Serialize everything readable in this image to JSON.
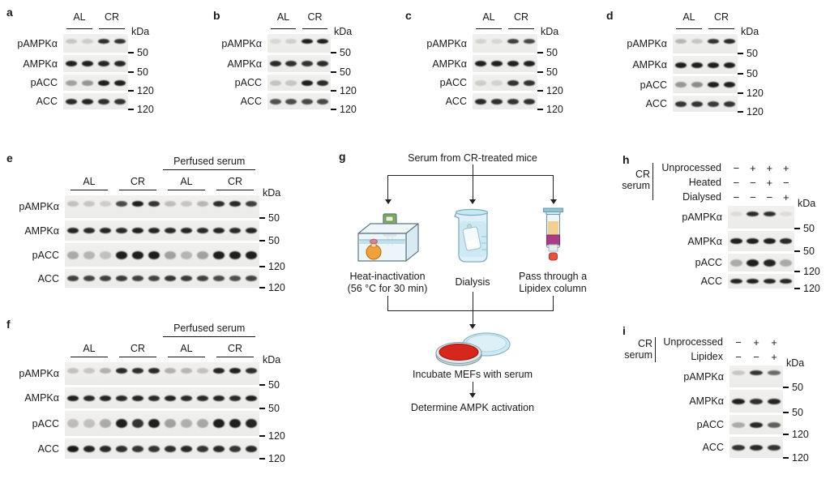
{
  "figure": {
    "kda_unit": "kDa",
    "panels": [
      {
        "id": "a",
        "letter": "a",
        "groups": [
          {
            "label": "AL",
            "lanes": 2
          },
          {
            "label": "CR",
            "lanes": 2
          }
        ],
        "rows": [
          {
            "label": "pAMPKα",
            "marker": "50",
            "bands": [
              0.18,
              0.15,
              0.88,
              0.85
            ]
          },
          {
            "label": "AMPKα",
            "marker": "50",
            "bands": [
              0.95,
              0.95,
              0.92,
              0.92
            ]
          },
          {
            "label": "pACC",
            "marker": "120",
            "bands": [
              0.35,
              0.4,
              0.95,
              0.95
            ]
          },
          {
            "label": "ACC",
            "marker": "120",
            "bands": [
              0.9,
              0.92,
              0.88,
              0.85
            ]
          }
        ]
      },
      {
        "id": "b",
        "letter": "b",
        "groups": [
          {
            "label": "AL",
            "lanes": 2
          },
          {
            "label": "CR",
            "lanes": 2
          }
        ],
        "rows": [
          {
            "label": "pAMPKα",
            "marker": "50",
            "bands": [
              0.1,
              0.14,
              0.95,
              0.95
            ]
          },
          {
            "label": "AMPKα",
            "marker": "50",
            "bands": [
              0.9,
              0.88,
              0.86,
              0.9
            ]
          },
          {
            "label": "pACC",
            "marker": "120",
            "bands": [
              0.18,
              0.18,
              0.95,
              0.9
            ]
          },
          {
            "label": "ACC",
            "marker": "120",
            "bands": [
              0.72,
              0.74,
              0.76,
              0.76
            ]
          }
        ]
      },
      {
        "id": "c",
        "letter": "c",
        "groups": [
          {
            "label": "AL",
            "lanes": 2
          },
          {
            "label": "CR",
            "lanes": 2
          }
        ],
        "rows": [
          {
            "label": "pAMPKα",
            "marker": "50",
            "bands": [
              0.12,
              0.1,
              0.8,
              0.76
            ]
          },
          {
            "label": "AMPKα",
            "marker": "50",
            "bands": [
              0.95,
              0.95,
              0.95,
              0.95
            ]
          },
          {
            "label": "pACC",
            "marker": "120",
            "bands": [
              0.15,
              0.12,
              0.86,
              0.86
            ]
          },
          {
            "label": "ACC",
            "marker": "120",
            "bands": [
              0.9,
              0.88,
              0.86,
              0.88
            ]
          }
        ]
      },
      {
        "id": "d",
        "letter": "d",
        "groups": [
          {
            "label": "AL",
            "lanes": 2
          },
          {
            "label": "CR",
            "lanes": 2
          }
        ],
        "rows": [
          {
            "label": "pAMPKα",
            "marker": "50",
            "bands": [
              0.25,
              0.18,
              0.86,
              0.9
            ]
          },
          {
            "label": "AMPKα",
            "marker": "50",
            "bands": [
              0.95,
              0.95,
              0.95,
              0.95
            ]
          },
          {
            "label": "pACC",
            "marker": "120",
            "bands": [
              0.4,
              0.45,
              0.95,
              0.95
            ]
          },
          {
            "label": "ACC",
            "marker": "120",
            "bands": [
              0.85,
              0.85,
              0.82,
              0.85
            ]
          }
        ]
      },
      {
        "id": "e",
        "letter": "e",
        "span_header": {
          "label": "Perfused serum"
        },
        "groups": [
          {
            "label": "AL",
            "lanes": 3
          },
          {
            "label": "CR",
            "lanes": 3
          },
          {
            "label": "AL",
            "lanes": 3
          },
          {
            "label": "CR",
            "lanes": 3
          }
        ],
        "rows": [
          {
            "label": "pAMPKα",
            "marker": "50",
            "bands": [
              0.2,
              0.18,
              0.15,
              0.75,
              0.95,
              0.85,
              0.22,
              0.18,
              0.25,
              0.88,
              0.9,
              0.8
            ]
          },
          {
            "label": "AMPKα",
            "marker": "50",
            "bands": [
              0.92,
              0.9,
              0.92,
              0.9,
              0.95,
              0.92,
              0.9,
              0.92,
              0.9,
              0.92,
              0.9,
              0.92
            ]
          },
          {
            "label": "pACC",
            "marker": "120",
            "bands": [
              0.3,
              0.25,
              0.2,
              0.95,
              0.95,
              0.95,
              0.35,
              0.25,
              0.35,
              0.95,
              0.95,
              0.95
            ]
          },
          {
            "label": "ACC",
            "marker": "120",
            "bands": [
              0.8,
              0.78,
              0.8,
              0.82,
              0.8,
              0.78,
              0.85,
              0.82,
              0.8,
              0.75,
              0.72,
              0.78
            ]
          }
        ]
      },
      {
        "id": "f",
        "letter": "f",
        "span_header": {
          "label": "Perfused serum"
        },
        "groups": [
          {
            "label": "AL",
            "lanes": 3
          },
          {
            "label": "CR",
            "lanes": 3
          },
          {
            "label": "AL",
            "lanes": 3
          },
          {
            "label": "CR",
            "lanes": 3
          }
        ],
        "rows": [
          {
            "label": "pAMPKα",
            "marker": "50",
            "bands": [
              0.2,
              0.18,
              0.28,
              0.9,
              0.88,
              0.9,
              0.28,
              0.25,
              0.2,
              0.92,
              0.95,
              0.88
            ]
          },
          {
            "label": "AMPKα",
            "marker": "50",
            "bands": [
              0.95,
              0.9,
              0.92,
              0.9,
              0.92,
              0.9,
              0.92,
              0.9,
              0.9,
              0.92,
              0.9,
              0.95
            ]
          },
          {
            "label": "pACC",
            "marker": "120",
            "bands": [
              0.22,
              0.2,
              0.3,
              0.95,
              0.85,
              0.95,
              0.35,
              0.28,
              0.32,
              0.95,
              0.95,
              0.92
            ]
          },
          {
            "label": "ACC",
            "marker": "120",
            "bands": [
              0.98,
              0.92,
              0.9,
              0.88,
              0.85,
              0.85,
              0.88,
              0.9,
              0.85,
              0.9,
              0.85,
              0.9
            ]
          }
        ]
      },
      {
        "id": "h",
        "letter": "h",
        "conditions": {
          "bracket_lines": "CR\nserum",
          "rows": [
            {
              "label": "Unprocessed",
              "values": [
                "−",
                "+",
                "+",
                "+"
              ]
            },
            {
              "label": "Heated",
              "values": [
                "−",
                "−",
                "+",
                "−"
              ]
            },
            {
              "label": "Dialysed",
              "values": [
                "−",
                "−",
                "−",
                "+"
              ]
            }
          ]
        },
        "rows": [
          {
            "label": "pAMPKα",
            "marker": "50",
            "bands": [
              0.08,
              0.9,
              0.88,
              0.08
            ]
          },
          {
            "label": "AMPKα",
            "marker": "50",
            "bands": [
              0.95,
              0.95,
              0.95,
              0.9
            ]
          },
          {
            "label": "pACC",
            "marker": "120",
            "bands": [
              0.3,
              0.95,
              0.92,
              0.3
            ]
          },
          {
            "label": "ACC",
            "marker": "120",
            "bands": [
              0.92,
              0.95,
              0.92,
              0.92
            ]
          }
        ]
      },
      {
        "id": "i",
        "letter": "i",
        "conditions": {
          "bracket_lines": "CR\nserum",
          "rows": [
            {
              "label": "Unprocessed",
              "values": [
                "−",
                "+",
                "+"
              ]
            },
            {
              "label": "Lipidex",
              "values": [
                "−",
                "−",
                "+"
              ]
            }
          ]
        },
        "rows": [
          {
            "label": "pAMPKα",
            "marker": "50",
            "bands": [
              0.18,
              0.85,
              0.6
            ]
          },
          {
            "label": "AMPKα",
            "marker": "50",
            "bands": [
              0.95,
              0.88,
              0.92
            ]
          },
          {
            "label": "pACC",
            "marker": "120",
            "bands": [
              0.3,
              0.9,
              0.65
            ]
          },
          {
            "label": "ACC",
            "marker": "120",
            "bands": [
              0.85,
              0.9,
              0.85
            ]
          }
        ]
      }
    ],
    "diagram": {
      "letter": "g",
      "title": "Serum from CR-treated mice",
      "branches": [
        {
          "icon": "water-bath-icon",
          "label1": "Heat-inactivation",
          "label2": "(56 °C for 30 min)"
        },
        {
          "icon": "dialysis-beaker-icon",
          "label1": "Dialysis",
          "label2": ""
        },
        {
          "icon": "lipidex-column-icon",
          "label1": "Pass through a",
          "label2": "Lipidex column"
        }
      ],
      "dish_icon": "petri-dish-icon",
      "steps": [
        "Incubate MEFs with serum",
        "Determine AMPK activation"
      ]
    },
    "colors": {
      "band": "#141414",
      "strip_bg": "#f0efee",
      "line": "#222222",
      "bath_green": "#7fae5a",
      "flask_orange": "#f0a13c",
      "flask_cap_pink": "#d4808f",
      "glass_blue": "#dff0f8",
      "column_tan": "#f5cf92",
      "column_magenta": "#a63d86",
      "column_red": "#e8513c",
      "dish_red": "#d5271b",
      "lid_blue": "#cde9f3"
    }
  }
}
